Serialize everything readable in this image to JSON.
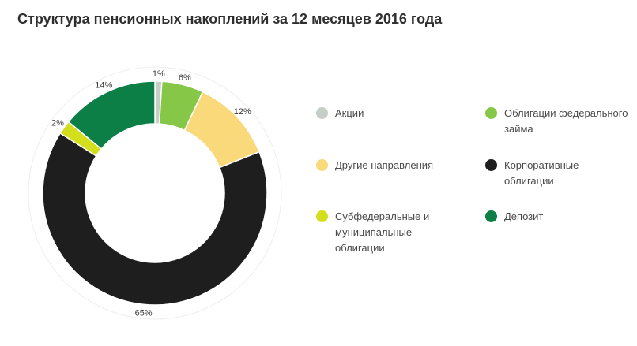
{
  "chart_data": {
    "type": "pie",
    "variant": "donut",
    "title": "Структура пенсионных накоплений за 12 месяцев 2016 года",
    "unit": "%",
    "slices": [
      {
        "name": "Акции",
        "value": 1,
        "label": "1%",
        "color": "#c5cfc7"
      },
      {
        "name": "Облигации федерального займа",
        "value": 6,
        "label": "6%",
        "color": "#86c748"
      },
      {
        "name": "Другие направления",
        "value": 12,
        "label": "12%",
        "color": "#fad97a"
      },
      {
        "name": "Корпоративные облигации",
        "value": 65,
        "label": "65%",
        "color": "#1e1e1e"
      },
      {
        "name": "Субфедеральные и муниципальные облигации",
        "value": 2,
        "label": "2%",
        "color": "#d3df1c"
      },
      {
        "name": "Депозит",
        "value": 14,
        "label": "14%",
        "color": "#0b7f46"
      }
    ],
    "legend": {
      "placement": "right",
      "columns": 2,
      "items": [
        {
          "label": "Акции",
          "color": "#c5cfc7"
        },
        {
          "label": "Облигации федерального займа",
          "color": "#86c748"
        },
        {
          "label": "Другие направления",
          "color": "#fad97a"
        },
        {
          "label": "Корпоративные облигации",
          "color": "#1e1e1e"
        },
        {
          "label": "Субфедеральные и муниципальные облигации",
          "color": "#d3df1c"
        },
        {
          "label": "Депозит",
          "color": "#0b7f46"
        }
      ]
    }
  }
}
